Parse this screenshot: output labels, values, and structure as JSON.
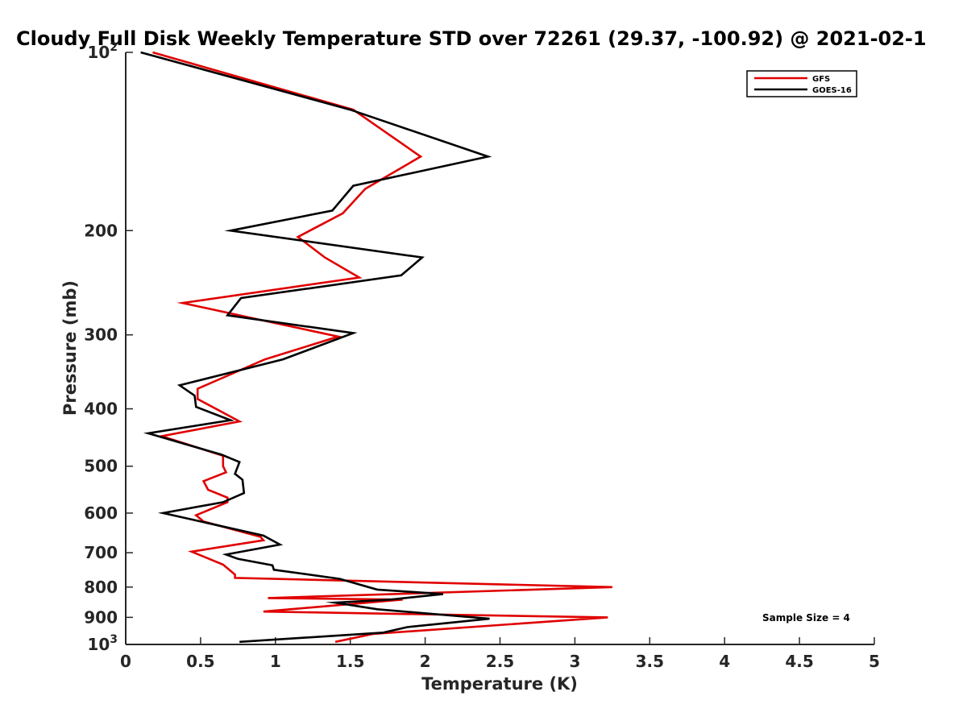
{
  "chart_data": {
    "type": "line",
    "title": "Cloudy Full Disk Weekly Temperature STD over 72261 (29.37, -100.92) @ 2021-02-1",
    "xlabel": "Temperature (K)",
    "ylabel": "Pressure (mb)",
    "xlim": [
      0,
      5
    ],
    "ylim": [
      100,
      1000
    ],
    "yscale": "log",
    "y_reversed": true,
    "grid": false,
    "legend_position": "top-right",
    "x_ticks": [
      0,
      0.5,
      1,
      1.5,
      2,
      2.5,
      3,
      3.5,
      4,
      4.5,
      5
    ],
    "x_tick_labels": [
      "0",
      "0.5",
      "1",
      "1.5",
      "2",
      "2.5",
      "3",
      "3.5",
      "4",
      "4.5",
      "5"
    ],
    "y_ticks": [
      {
        "value": 100,
        "base": "10",
        "exp": "2"
      },
      {
        "value": 200,
        "label": "200"
      },
      {
        "value": 300,
        "label": "300"
      },
      {
        "value": 400,
        "label": "400"
      },
      {
        "value": 500,
        "label": "500"
      },
      {
        "value": 600,
        "label": "600"
      },
      {
        "value": 700,
        "label": "700"
      },
      {
        "value": 800,
        "label": "800"
      },
      {
        "value": 900,
        "label": "900"
      },
      {
        "value": 1000,
        "base": "10",
        "exp": "3"
      }
    ],
    "annotation": "Sample Size = 4",
    "series": [
      {
        "name": "GFS",
        "color": "#e00000",
        "points": [
          [
            0.18,
            100
          ],
          [
            1.52,
            125
          ],
          [
            1.97,
            150
          ],
          [
            1.6,
            170
          ],
          [
            1.45,
            187
          ],
          [
            1.15,
            205
          ],
          [
            1.33,
            222
          ],
          [
            1.56,
            240
          ],
          [
            0.38,
            265
          ],
          [
            0.9,
            283
          ],
          [
            1.42,
            302
          ],
          [
            0.93,
            330
          ],
          [
            0.48,
            370
          ],
          [
            0.48,
            385
          ],
          [
            0.76,
            420
          ],
          [
            0.24,
            445
          ],
          [
            0.65,
            480
          ],
          [
            0.65,
            500
          ],
          [
            0.67,
            512
          ],
          [
            0.52,
            530
          ],
          [
            0.55,
            548
          ],
          [
            0.68,
            565
          ],
          [
            0.68,
            575
          ],
          [
            0.47,
            605
          ],
          [
            0.52,
            620
          ],
          [
            0.9,
            658
          ],
          [
            0.92,
            667
          ],
          [
            0.44,
            697
          ],
          [
            0.65,
            733
          ],
          [
            0.73,
            762
          ],
          [
            0.73,
            772
          ],
          [
            3.25,
            800
          ],
          [
            0.95,
            835
          ],
          [
            1.85,
            840
          ],
          [
            0.92,
            880
          ],
          [
            3.22,
            900
          ],
          [
            1.65,
            960
          ],
          [
            1.4,
            990
          ]
        ]
      },
      {
        "name": "GOES-16",
        "color": "#000000",
        "points": [
          [
            0.1,
            100
          ],
          [
            1.5,
            125
          ],
          [
            2.42,
            150
          ],
          [
            1.52,
            168
          ],
          [
            1.38,
            185
          ],
          [
            0.7,
            200
          ],
          [
            1.98,
            222
          ],
          [
            1.84,
            238
          ],
          [
            0.77,
            260
          ],
          [
            0.68,
            278
          ],
          [
            1.52,
            298
          ],
          [
            1.05,
            330
          ],
          [
            0.36,
            365
          ],
          [
            0.46,
            380
          ],
          [
            0.47,
            397
          ],
          [
            0.7,
            418
          ],
          [
            0.15,
            440
          ],
          [
            0.64,
            478
          ],
          [
            0.76,
            492
          ],
          [
            0.73,
            515
          ],
          [
            0.78,
            527
          ],
          [
            0.79,
            555
          ],
          [
            0.65,
            575
          ],
          [
            0.25,
            600
          ],
          [
            0.92,
            655
          ],
          [
            1.03,
            678
          ],
          [
            0.67,
            705
          ],
          [
            0.75,
            717
          ],
          [
            0.98,
            735
          ],
          [
            0.99,
            748
          ],
          [
            1.43,
            775
          ],
          [
            1.68,
            808
          ],
          [
            2.12,
            822
          ],
          [
            1.77,
            840
          ],
          [
            1.4,
            850
          ],
          [
            1.68,
            872
          ],
          [
            2.43,
            905
          ],
          [
            1.88,
            935
          ],
          [
            1.72,
            955
          ],
          [
            0.76,
            990
          ]
        ]
      }
    ]
  }
}
